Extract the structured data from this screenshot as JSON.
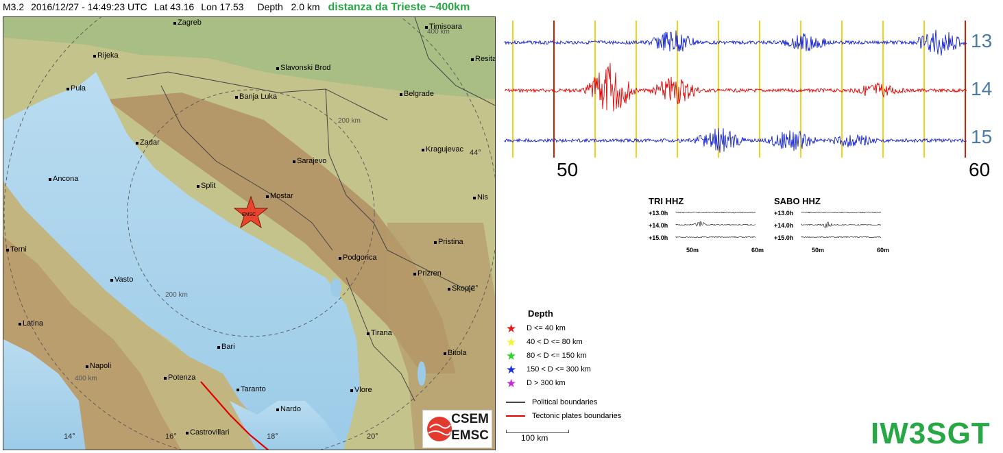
{
  "header": {
    "magnitude": "M3.2",
    "datetime": "2016/12/27 - 14:49:23 UTC",
    "lat": "Lat 43.16",
    "lon": "Lon 17.53",
    "depth": "Depth   2.0 km",
    "distance_note": "distanza da Trieste ~400km"
  },
  "map": {
    "cities": [
      {
        "name": "Zagreb"
      },
      {
        "name": "Timisoara"
      },
      {
        "name": "Rijeka"
      },
      {
        "name": "Resita"
      },
      {
        "name": "Slavonski Brod"
      },
      {
        "name": "Pula"
      },
      {
        "name": "Banja Luka"
      },
      {
        "name": "Belgrade"
      },
      {
        "name": "Zadar"
      },
      {
        "name": "Kragujevac"
      },
      {
        "name": "Sarajevo"
      },
      {
        "name": "Ancona"
      },
      {
        "name": "Split"
      },
      {
        "name": "Mostar"
      },
      {
        "name": "Nis"
      },
      {
        "name": "Pristina"
      },
      {
        "name": "Terni"
      },
      {
        "name": "Podgorica"
      },
      {
        "name": "Prizren"
      },
      {
        "name": "Vasto"
      },
      {
        "name": "Skopje"
      },
      {
        "name": "Latina"
      },
      {
        "name": "Tirana"
      },
      {
        "name": "Bari"
      },
      {
        "name": "Napoli"
      },
      {
        "name": "Bitola"
      },
      {
        "name": "Potenza"
      },
      {
        "name": "Taranto"
      },
      {
        "name": "Vlore"
      },
      {
        "name": "Nardo"
      },
      {
        "name": "Castrovillari"
      }
    ],
    "distance_labels": [
      "400 km",
      "200 km",
      "200 km",
      "400 km"
    ],
    "grid_labels": [
      "44°",
      "42°",
      "14°",
      "16°",
      "18°",
      "20°"
    ],
    "epicenter_label": "EMSC",
    "logo_top": "CSEM",
    "logo_bottom": "EMSC"
  },
  "seismogram": {
    "hour_labels": [
      "13",
      "14",
      "15"
    ],
    "minute_labels": [
      "50",
      "60"
    ]
  },
  "mini_plots": [
    {
      "title": "TRI HHZ",
      "hours": [
        "+13.0h",
        "+14.0h",
        "+15.0h"
      ],
      "x_labels": [
        "50m",
        "60m"
      ]
    },
    {
      "title": "SABO HHZ",
      "hours": [
        "+13.0h",
        "+14.0h",
        "+15.0h"
      ],
      "x_labels": [
        "50m",
        "60m"
      ]
    }
  ],
  "legend": {
    "title": "Depth",
    "items": [
      {
        "label": "D <= 40 km",
        "color": "#e31a1c"
      },
      {
        "label": "40 < D <= 80 km",
        "color": "#f5f532"
      },
      {
        "label": "80 < D <= 150 km",
        "color": "#2ad52a"
      },
      {
        "label": "150 < D <= 300 km",
        "color": "#1c2ed6"
      },
      {
        "label": "D > 300 km",
        "color": "#c12ed6"
      }
    ],
    "lines": [
      {
        "label": "Political boundaries",
        "color": "#444444"
      },
      {
        "label": "Tectonic plates boundaries",
        "color": "#e00000"
      }
    ],
    "scale_label": "100 km"
  },
  "brand": "IW3SGT"
}
